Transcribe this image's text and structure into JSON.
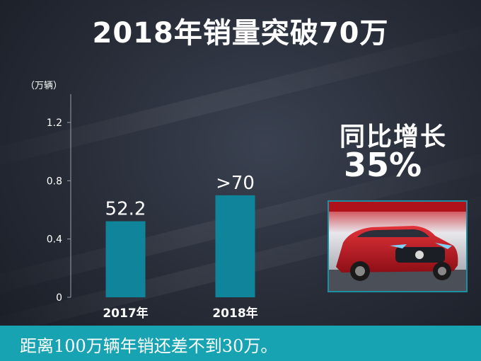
{
  "title": "2018年销量突破70万",
  "chart_data": {
    "type": "bar",
    "unit": "（万辆）",
    "categories": [
      "2017年",
      "2018年"
    ],
    "values": [
      0.522,
      0.7
    ],
    "data_labels": [
      "52.2",
      ">70"
    ],
    "yticks": [
      "0",
      "0.4",
      "0.8",
      "1.2"
    ],
    "ylim": [
      0,
      1.2
    ],
    "bar_color": "#10849a",
    "grid": false
  },
  "growth": {
    "label": "同比增长",
    "value": "35%"
  },
  "footer": {
    "text": "距离100万辆年销还差不到30万。",
    "color": "#17a3b2"
  }
}
